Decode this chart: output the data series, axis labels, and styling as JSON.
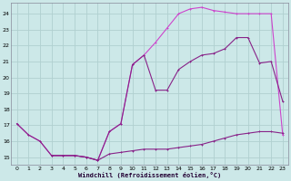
{
  "bg_color": "#cce8e8",
  "grid_color": "#b0d0d0",
  "line_color_bright": "#cc44cc",
  "line_color_dark": "#882288",
  "xlabel": "Windchill (Refroidissement éolien,°C)",
  "xlim": [
    -0.5,
    23.5
  ],
  "ylim": [
    14.5,
    24.7
  ],
  "yticks": [
    15,
    16,
    17,
    18,
    19,
    20,
    21,
    22,
    23,
    24
  ],
  "xticks": [
    0,
    1,
    2,
    3,
    4,
    5,
    6,
    7,
    8,
    9,
    10,
    11,
    12,
    13,
    14,
    15,
    16,
    17,
    18,
    19,
    20,
    21,
    22,
    23
  ],
  "line1_x": [
    0,
    1,
    2,
    3,
    4,
    5,
    6,
    7,
    8,
    9,
    10,
    11,
    12,
    13,
    14,
    15,
    16,
    17,
    18,
    19,
    20,
    21,
    22,
    23
  ],
  "line1_y": [
    17.1,
    16.4,
    16.0,
    15.1,
    15.1,
    15.1,
    15.0,
    14.8,
    16.6,
    17.1,
    20.8,
    21.4,
    22.2,
    23.1,
    24.0,
    24.3,
    24.4,
    24.2,
    24.1,
    24.0,
    24.0,
    24.0,
    24.0,
    16.4
  ],
  "line2_x": [
    0,
    1,
    2,
    3,
    4,
    5,
    6,
    7,
    8,
    9,
    10,
    11,
    12,
    13,
    14,
    15,
    16,
    17,
    18,
    19,
    20,
    21,
    22,
    23
  ],
  "line2_y": [
    17.1,
    16.4,
    16.0,
    15.1,
    15.1,
    15.1,
    15.0,
    14.8,
    16.6,
    17.1,
    20.8,
    21.4,
    19.2,
    19.2,
    20.5,
    21.0,
    21.4,
    21.5,
    21.8,
    22.5,
    22.5,
    20.9,
    21.0,
    18.5
  ],
  "line3_x": [
    3,
    4,
    5,
    6,
    7,
    8,
    9,
    10,
    11,
    12,
    13,
    14,
    15,
    16,
    17,
    18,
    19,
    20,
    21,
    22,
    23
  ],
  "line3_y": [
    15.1,
    15.1,
    15.1,
    15.0,
    14.8,
    15.2,
    15.3,
    15.4,
    15.5,
    15.5,
    15.5,
    15.6,
    15.7,
    15.8,
    16.0,
    16.2,
    16.4,
    16.5,
    16.6,
    16.6,
    16.5
  ]
}
